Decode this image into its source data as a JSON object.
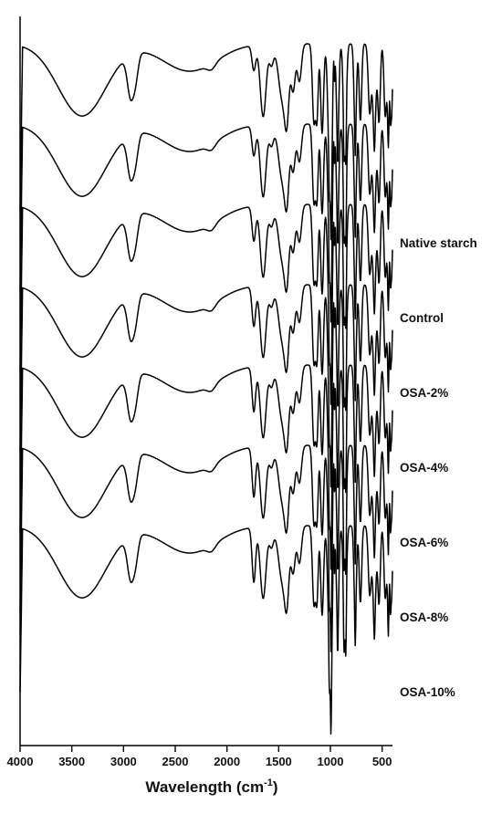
{
  "chart_data": {
    "type": "line",
    "xlabel": "Wavelength (cm",
    "xlabel_sup": "-1",
    "xlabel_end": ")",
    "ylabel": "",
    "xlim": [
      4000,
      400
    ],
    "x_reversed": true,
    "x_ticks": [
      4000,
      3500,
      3000,
      2500,
      2000,
      1500,
      1000,
      500
    ],
    "y_ticks": [],
    "grid": false,
    "layout": "stacked-offset",
    "peak_positions": [
      3400,
      2930,
      2360,
      2140,
      2050,
      1740,
      1650,
      1570,
      1460,
      1420,
      1380,
      1350,
      1300,
      1160,
      1130,
      1080,
      1010,
      1000,
      930,
      860,
      760,
      710,
      620,
      580,
      530,
      470,
      440,
      410
    ],
    "series": [
      {
        "name": "Native starch"
      },
      {
        "name": "Control"
      },
      {
        "name": "OSA-2%"
      },
      {
        "name": "OSA-4%"
      },
      {
        "name": "OSA-6%"
      },
      {
        "name": "OSA-8%"
      },
      {
        "name": "OSA-10%"
      }
    ]
  }
}
